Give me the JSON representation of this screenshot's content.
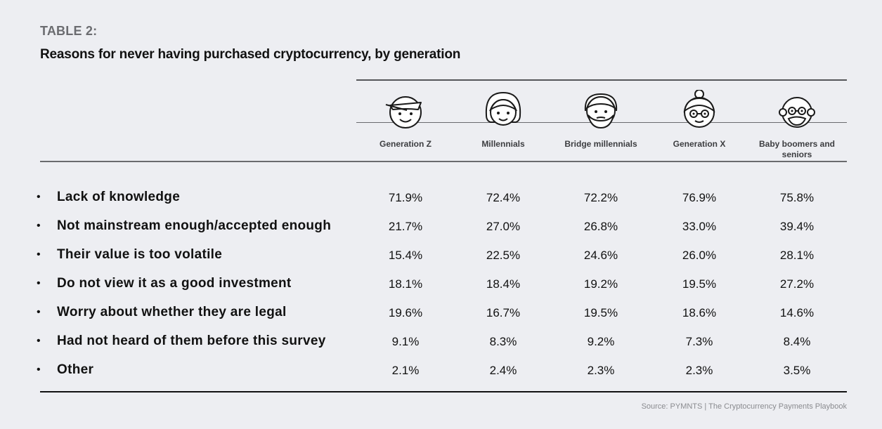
{
  "header": {
    "eyebrow": "TABLE 2:",
    "title": "Reasons for never having purchased cryptocurrency, by generation"
  },
  "columns": [
    {
      "label": "Generation Z",
      "icon": "gen-z-avatar-icon"
    },
    {
      "label": "Millennials",
      "icon": "millennial-avatar-icon"
    },
    {
      "label": "Bridge millennials",
      "icon": "bridge-millennial-avatar-icon"
    },
    {
      "label": "Generation X",
      "icon": "gen-x-avatar-icon"
    },
    {
      "label": "Baby boomers and seniors",
      "icon": "boomer-avatar-icon"
    }
  ],
  "rows": [
    {
      "label": "Lack of knowledge",
      "values": [
        "71.9%",
        "72.4%",
        "72.2%",
        "76.9%",
        "75.8%"
      ]
    },
    {
      "label": "Not mainstream enough/accepted enough",
      "values": [
        "21.7%",
        "27.0%",
        "26.8%",
        "33.0%",
        "39.4%"
      ]
    },
    {
      "label": "Their value is too volatile",
      "values": [
        "15.4%",
        "22.5%",
        "24.6%",
        "26.0%",
        "28.1%"
      ]
    },
    {
      "label": "Do not view it as a good investment",
      "values": [
        "18.1%",
        "18.4%",
        "19.2%",
        "19.5%",
        "27.2%"
      ]
    },
    {
      "label": "Worry about whether they are legal",
      "values": [
        "19.6%",
        "16.7%",
        "19.5%",
        "18.6%",
        "14.6%"
      ]
    },
    {
      "label": "Had not heard of them before this survey",
      "values": [
        "9.1%",
        "8.3%",
        "9.2%",
        "7.3%",
        "8.4%"
      ]
    },
    {
      "label": "Other",
      "values": [
        "2.1%",
        "2.4%",
        "2.3%",
        "2.3%",
        "3.5%"
      ]
    }
  ],
  "bullet": "•",
  "source": "Source: PYMNTS | The Cryptocurrency Payments Playbook"
}
